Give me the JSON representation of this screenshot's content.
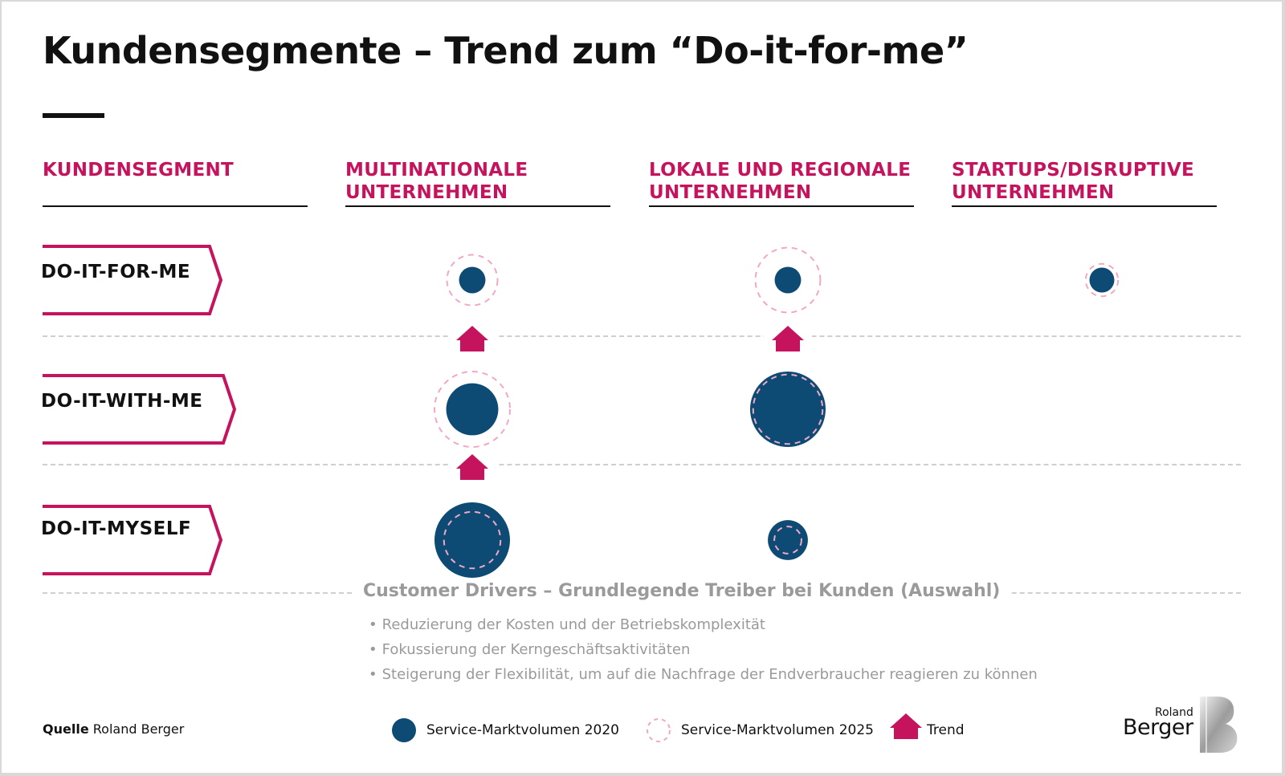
{
  "title": "Kundensegmente – Trend zum “Do-it-for-me”",
  "colors": {
    "accent": "#c5135e",
    "circle_2020": "#0d4a74",
    "circle_2025": "#f2a8c4",
    "text": "#111111",
    "muted": "#9a9a9a"
  },
  "columns": {
    "segment_header": "KUNDENSEGMENT",
    "multinational": [
      "MULTINATIONALE",
      "UNTERNEHMEN"
    ],
    "lokal": [
      "LOKALE UND REGIONALE",
      "UNTERNEHMEN"
    ],
    "startups": [
      "STARTUPS/DISRUPTIVE",
      "UNTERNEHMEN"
    ]
  },
  "rows": [
    "DO-IT-FOR-ME",
    "DO-IT-WITH-ME",
    "DO-IT-MYSELF"
  ],
  "chart_data": {
    "type": "bubble-matrix",
    "title": "Kundensegmente – Trend zum “Do-it-for-me”",
    "categories_x": [
      "MULTINATIONALE UNTERNEHMEN",
      "LOKALE UND REGIONALE UNTERNEHMEN",
      "STARTUPS/DISRUPTIVE UNTERNEHMEN"
    ],
    "categories_y": [
      "DO-IT-FOR-ME",
      "DO-IT-WITH-ME",
      "DO-IT-MYSELF"
    ],
    "series": [
      {
        "name": "Service-Marktvolumen 2020",
        "style": "filled",
        "relative_size": [
          [
            0.35,
            0.35,
            0.33
          ],
          [
            0.69,
            1.0,
            0
          ],
          [
            1.0,
            0.53,
            0
          ]
        ]
      },
      {
        "name": "Service-Marktvolumen 2025",
        "style": "dashed-outline",
        "relative_size": [
          [
            0.67,
            0.86,
            0.43
          ],
          [
            1.0,
            0.92,
            0
          ],
          [
            0.75,
            0.36,
            0
          ]
        ]
      },
      {
        "name": "Trend",
        "style": "arrow-up",
        "markers": [
          {
            "column": "MULTINATIONALE UNTERNEHMEN",
            "from": "DO-IT-WITH-ME",
            "to": "DO-IT-FOR-ME"
          },
          {
            "column": "LOKALE UND REGIONALE UNTERNEHMEN",
            "from": "DO-IT-WITH-ME",
            "to": "DO-IT-FOR-ME"
          },
          {
            "column": "MULTINATIONALE UNTERNEHMEN",
            "from": "DO-IT-MYSELF",
            "to": "DO-IT-WITH-ME"
          }
        ]
      }
    ]
  },
  "drivers": {
    "title": "Customer Drivers – Grundlegende Treiber bei Kunden (Auswahl)",
    "bullet": "•",
    "items": [
      "Reduzierung der Kosten und der Betriebskomplexität",
      "Fokussierung der Kerngeschäftsaktivitäten",
      "Steigerung der Flexibilität, um auf die Nachfrage der Endverbraucher reagieren zu können"
    ]
  },
  "footer": {
    "source_label": "Quelle",
    "source_value": "Roland Berger",
    "legend": [
      "Service-Marktvolumen 2020",
      "Service-Marktvolumen 2025",
      "Trend"
    ],
    "logo_top": "Roland",
    "logo_bottom": "Berger",
    "logo_mark": "B"
  }
}
